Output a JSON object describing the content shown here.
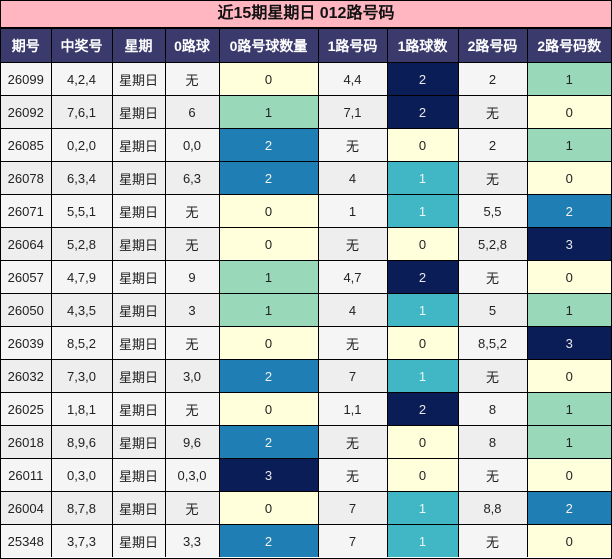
{
  "title": "近15期星期日 012路号码",
  "headers": [
    "期号",
    "中奖号",
    "星期",
    "0路球",
    "0路号球数量",
    "1路号码",
    "1路球数",
    "2路号码",
    "2路号码数"
  ],
  "colors": {
    "title_bg": "#ffb6c1",
    "header_bg": "#3b3a6d",
    "count_0": "#ffffdc",
    "count_1": "#99d8b9",
    "count_2": "#1f7fb5",
    "count_3": "#0b1d56",
    "route1_count_1": "#41b6c4",
    "route1_count_2": "#0b1d56"
  },
  "rows": [
    {
      "issue": "26099",
      "nums": "4,2,4",
      "day": "星期日",
      "r0": "无",
      "r0c": "0",
      "r1": "4,4",
      "r1c": "2",
      "r2": "2",
      "r2c": "1"
    },
    {
      "issue": "26092",
      "nums": "7,6,1",
      "day": "星期日",
      "r0": "6",
      "r0c": "1",
      "r1": "7,1",
      "r1c": "2",
      "r2": "无",
      "r2c": "0"
    },
    {
      "issue": "26085",
      "nums": "0,2,0",
      "day": "星期日",
      "r0": "0,0",
      "r0c": "2",
      "r1": "无",
      "r1c": "0",
      "r2": "2",
      "r2c": "1"
    },
    {
      "issue": "26078",
      "nums": "6,3,4",
      "day": "星期日",
      "r0": "6,3",
      "r0c": "2",
      "r1": "4",
      "r1c": "1",
      "r2": "无",
      "r2c": "0"
    },
    {
      "issue": "26071",
      "nums": "5,5,1",
      "day": "星期日",
      "r0": "无",
      "r0c": "0",
      "r1": "1",
      "r1c": "1",
      "r2": "5,5",
      "r2c": "2"
    },
    {
      "issue": "26064",
      "nums": "5,2,8",
      "day": "星期日",
      "r0": "无",
      "r0c": "0",
      "r1": "无",
      "r1c": "0",
      "r2": "5,2,8",
      "r2c": "3"
    },
    {
      "issue": "26057",
      "nums": "4,7,9",
      "day": "星期日",
      "r0": "9",
      "r0c": "1",
      "r1": "4,7",
      "r1c": "2",
      "r2": "无",
      "r2c": "0"
    },
    {
      "issue": "26050",
      "nums": "4,3,5",
      "day": "星期日",
      "r0": "3",
      "r0c": "1",
      "r1": "4",
      "r1c": "1",
      "r2": "5",
      "r2c": "1"
    },
    {
      "issue": "26039",
      "nums": "8,5,2",
      "day": "星期日",
      "r0": "无",
      "r0c": "0",
      "r1": "无",
      "r1c": "0",
      "r2": "8,5,2",
      "r2c": "3"
    },
    {
      "issue": "26032",
      "nums": "7,3,0",
      "day": "星期日",
      "r0": "3,0",
      "r0c": "2",
      "r1": "7",
      "r1c": "1",
      "r2": "无",
      "r2c": "0"
    },
    {
      "issue": "26025",
      "nums": "1,8,1",
      "day": "星期日",
      "r0": "无",
      "r0c": "0",
      "r1": "1,1",
      "r1c": "2",
      "r2": "8",
      "r2c": "1"
    },
    {
      "issue": "26018",
      "nums": "8,9,6",
      "day": "星期日",
      "r0": "9,6",
      "r0c": "2",
      "r1": "无",
      "r1c": "0",
      "r2": "8",
      "r2c": "1"
    },
    {
      "issue": "26011",
      "nums": "0,3,0",
      "day": "星期日",
      "r0": "0,3,0",
      "r0c": "3",
      "r1": "无",
      "r1c": "0",
      "r2": "无",
      "r2c": "0"
    },
    {
      "issue": "26004",
      "nums": "8,7,8",
      "day": "星期日",
      "r0": "无",
      "r0c": "0",
      "r1": "7",
      "r1c": "1",
      "r2": "8,8",
      "r2c": "2"
    },
    {
      "issue": "25348",
      "nums": "3,7,3",
      "day": "星期日",
      "r0": "3,3",
      "r0c": "2",
      "r1": "7",
      "r1c": "1",
      "r2": "无",
      "r2c": "0"
    }
  ]
}
